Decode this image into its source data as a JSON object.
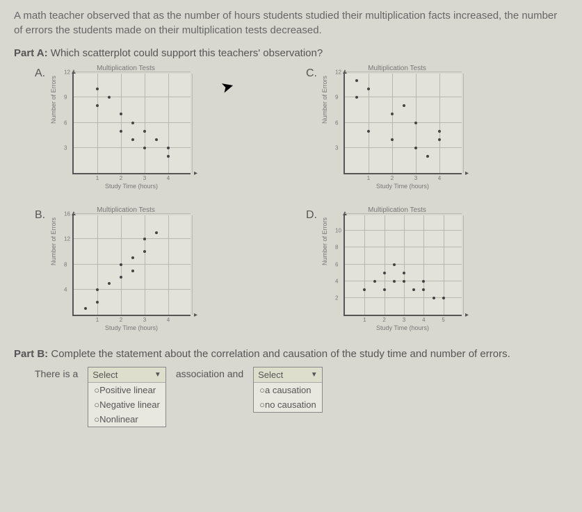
{
  "question": {
    "intro": "A math teacher observed that as the number of hours students studied their multiplication facts increased, the number of errors the students made on their multiplication tests decreased.",
    "partA_label": "Part A:",
    "partA_text": "Which scatterplot could support this teachers' observation?",
    "partB_label": "Part B:",
    "partB_text": "Complete the statement about the correlation and causation of the study time and number of errors."
  },
  "plots": {
    "A": {
      "letter": "A.",
      "title": "Multiplication Tests",
      "ylabel": "Number of Errors",
      "xlabel": "Study Time (hours)",
      "xlim": [
        0,
        5
      ],
      "ylim": [
        0,
        12
      ],
      "xstep": 1,
      "ystep": 3,
      "xticks": [
        "1",
        "2",
        "3",
        "4"
      ],
      "yticks": [
        "3",
        "6",
        "9",
        "12"
      ],
      "points": [
        [
          1,
          10
        ],
        [
          1,
          8
        ],
        [
          1.5,
          9
        ],
        [
          2,
          7
        ],
        [
          2,
          5
        ],
        [
          2.5,
          6
        ],
        [
          2.5,
          4
        ],
        [
          3,
          5
        ],
        [
          3,
          3
        ],
        [
          3.5,
          4
        ],
        [
          4,
          3
        ],
        [
          4,
          2
        ]
      ]
    },
    "C": {
      "letter": "C.",
      "title": "Multiplication Tests",
      "ylabel": "Number of Errors",
      "xlabel": "Study Time (hours)",
      "xlim": [
        0,
        5
      ],
      "ylim": [
        0,
        12
      ],
      "xstep": 1,
      "ystep": 3,
      "xticks": [
        "1",
        "2",
        "3",
        "4"
      ],
      "yticks": [
        "3",
        "6",
        "9",
        "12"
      ],
      "points": [
        [
          0.5,
          11
        ],
        [
          0.5,
          9
        ],
        [
          1,
          10
        ],
        [
          1,
          5
        ],
        [
          2,
          4
        ],
        [
          2,
          7
        ],
        [
          2.5,
          8
        ],
        [
          3,
          3
        ],
        [
          3,
          6
        ],
        [
          3.5,
          2
        ],
        [
          4,
          5
        ],
        [
          4,
          4
        ]
      ]
    },
    "B": {
      "letter": "B.",
      "title": "Multiplication Tests",
      "ylabel": "Number of Errors",
      "xlabel": "Study Time (hours)",
      "xlim": [
        0,
        5
      ],
      "ylim": [
        0,
        16
      ],
      "xstep": 1,
      "ystep": 4,
      "xticks": [
        "1",
        "2",
        "3",
        "4"
      ],
      "yticks": [
        "4",
        "8",
        "12",
        "16"
      ],
      "points": [
        [
          0.5,
          1
        ],
        [
          1,
          2
        ],
        [
          1,
          4
        ],
        [
          1.5,
          5
        ],
        [
          2,
          6
        ],
        [
          2,
          8
        ],
        [
          2.5,
          7
        ],
        [
          2.5,
          9
        ],
        [
          3,
          10
        ],
        [
          3,
          12
        ],
        [
          3.5,
          13
        ]
      ]
    },
    "D": {
      "letter": "D.",
      "title": "Multiplication Tests",
      "ylabel": "Number of Errors",
      "xlabel": "Study Time (hours)",
      "xlim": [
        0,
        6
      ],
      "ylim": [
        0,
        12
      ],
      "xstep": 1,
      "ystep": 2,
      "xticks": [
        "1",
        "2",
        "3",
        "4",
        "5"
      ],
      "yticks": [
        "2",
        "4",
        "6",
        "8",
        "10"
      ],
      "points": [
        [
          1,
          3
        ],
        [
          1.5,
          4
        ],
        [
          2,
          3
        ],
        [
          2,
          5
        ],
        [
          2.5,
          4
        ],
        [
          2.5,
          6
        ],
        [
          3,
          5
        ],
        [
          3,
          4
        ],
        [
          3.5,
          3
        ],
        [
          4,
          4
        ],
        [
          4,
          3
        ],
        [
          4.5,
          2
        ],
        [
          5,
          2
        ]
      ]
    }
  },
  "partB_form": {
    "lead": "There is a",
    "select1": {
      "header": "Select",
      "options": [
        "○Positive linear",
        "○Negative linear",
        "○Nonlinear"
      ]
    },
    "mid": "association and",
    "select2": {
      "header": "Select",
      "options": [
        "○a causation",
        "○no causation"
      ]
    }
  },
  "style": {
    "grid_color": "#b8b8b0",
    "point_color": "#444",
    "axis_color": "#555"
  }
}
